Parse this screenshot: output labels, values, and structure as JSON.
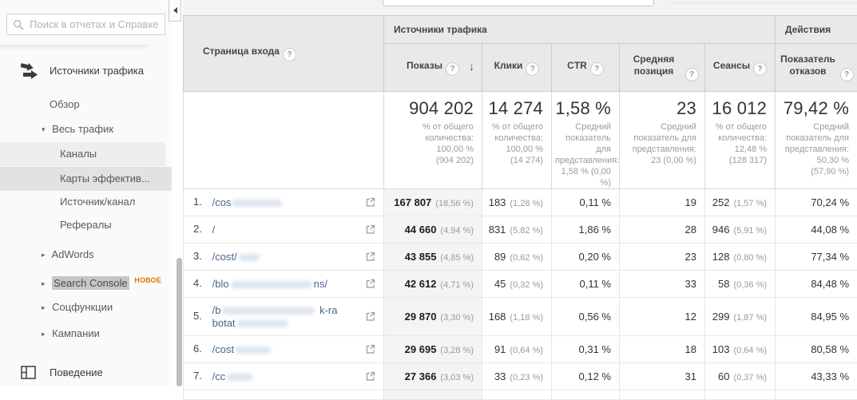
{
  "sidebar": {
    "search": {
      "placeholder": "Поиск в отчетах и Справке"
    },
    "items": [
      {
        "id": "acquisition",
        "label": "Источники трафика",
        "level": "section",
        "icon": "acquisition-icon"
      },
      {
        "id": "overview",
        "label": "Обзор",
        "level": "l1"
      },
      {
        "id": "all-traffic",
        "label": "Весь трафик",
        "level": "l1",
        "arrow": "down"
      },
      {
        "id": "channels",
        "label": "Каналы",
        "level": "l2",
        "highlight": "row-light"
      },
      {
        "id": "treemaps",
        "label": "Карты эффектив...",
        "level": "l2",
        "highlight": "row-dark"
      },
      {
        "id": "source-medium",
        "label": "Источник/канал",
        "level": "l2"
      },
      {
        "id": "referrals",
        "label": "Рефералы",
        "level": "l2"
      },
      {
        "id": "adwords",
        "label": "AdWords",
        "level": "l1",
        "arrow": "right"
      },
      {
        "id": "search-console",
        "label": "Search Console",
        "level": "l1",
        "arrow": "right",
        "badge": "НОВОЕ",
        "text_highlight": true
      },
      {
        "id": "social",
        "label": "Соцфункции",
        "level": "l1",
        "arrow": "right"
      },
      {
        "id": "campaigns",
        "label": "Кампании",
        "level": "l1",
        "arrow": "right"
      },
      {
        "id": "behavior",
        "label": "Поведение",
        "level": "section",
        "icon": "behavior-icon"
      }
    ]
  },
  "table": {
    "col_page": "Страница входа",
    "group_traffic": "Источники трафика",
    "group_actions": "Действия",
    "col_impressions": "Показы",
    "col_clicks": "Клики",
    "col_ctr": "CTR",
    "col_position": "Средняя позиция",
    "col_sessions": "Сеансы",
    "col_bounce": "Показатель отказов",
    "sort_arrow": "↓",
    "help_glyph": "?",
    "summary": {
      "impressions": {
        "value": "904 202",
        "note": "% от общего\nколичества:\n100,00 %\n(904 202)"
      },
      "clicks": {
        "value": "14 274",
        "note": "% от общего\nколичества:\n100,00 %\n(14 274)"
      },
      "ctr": {
        "value": "1,58 %",
        "note": "Средний\nпоказатель для\nпредставления:\n1,58 % (0,00 %)"
      },
      "position": {
        "value": "23",
        "note": "Средний\nпоказатель для\nпредставления:\n23 (0,00 %)"
      },
      "sessions": {
        "value": "16 012",
        "note": "% от общего\nколичества:\n12,48 %\n(128 317)"
      },
      "bounce": {
        "value": "79,42 %",
        "note": "Средний\nпоказатель для\nпредставления:\n50,30 %\n(57,90 %)"
      }
    },
    "rows": [
      {
        "rank": "1.",
        "page": {
          "pre": "/cos",
          "blur": 62,
          "post": ""
        },
        "impressions": "167 807",
        "impressions_pct": "(18,56 %)",
        "clicks": "183",
        "clicks_pct": "(1,28 %)",
        "ctr": "0,11 %",
        "position": "19",
        "sessions": "252",
        "sessions_pct": "(1,57 %)",
        "bounce": "70,24 %"
      },
      {
        "rank": "2.",
        "page": {
          "pre": "/",
          "blur": 0,
          "post": ""
        },
        "impressions": "44 660",
        "impressions_pct": "(4,94 %)",
        "clicks": "831",
        "clicks_pct": "(5,82 %)",
        "ctr": "1,86 %",
        "position": "28",
        "sessions": "946",
        "sessions_pct": "(5,91 %)",
        "bounce": "44,08 %"
      },
      {
        "rank": "3.",
        "page": {
          "pre": "/cost/",
          "blur": 26,
          "post": ""
        },
        "impressions": "43 855",
        "impressions_pct": "(4,85 %)",
        "clicks": "89",
        "clicks_pct": "(0,62 %)",
        "ctr": "0,20 %",
        "position": "23",
        "sessions": "128",
        "sessions_pct": "(0,80 %)",
        "bounce": "77,34 %"
      },
      {
        "rank": "4.",
        "page": {
          "pre": "/blo",
          "blur": 102,
          "post": "ns/"
        },
        "impressions": "42 612",
        "impressions_pct": "(4,71 %)",
        "clicks": "45",
        "clicks_pct": "(0,32 %)",
        "ctr": "0,11 %",
        "position": "33",
        "sessions": "58",
        "sessions_pct": "(0,36 %)",
        "bounce": "84,48 %"
      },
      {
        "rank": "5.",
        "page": {
          "pre": "/b",
          "blur": 116,
          "post": " k-ra",
          "line2": {
            "pre": "botat",
            "blur": 64,
            "post": ""
          }
        },
        "impressions": "29 870",
        "impressions_pct": "(3,30 %)",
        "clicks": "168",
        "clicks_pct": "(1,18 %)",
        "ctr": "0,56 %",
        "position": "12",
        "sessions": "299",
        "sessions_pct": "(1,87 %)",
        "bounce": "84,95 %"
      },
      {
        "rank": "6.",
        "page": {
          "pre": "/cost",
          "blur": 44,
          "post": ""
        },
        "impressions": "29 695",
        "impressions_pct": "(3,28 %)",
        "clicks": "91",
        "clicks_pct": "(0,64 %)",
        "ctr": "0,31 %",
        "position": "18",
        "sessions": "103",
        "sessions_pct": "(0,64 %)",
        "bounce": "80,58 %"
      },
      {
        "rank": "7.",
        "page": {
          "pre": "/cc",
          "blur": 32,
          "post": ""
        },
        "impressions": "27 366",
        "impressions_pct": "(3,03 %)",
        "clicks": "33",
        "clicks_pct": "(0,23 %)",
        "ctr": "0,12 %",
        "position": "31",
        "sessions": "60",
        "sessions_pct": "(0,37 %)",
        "bounce": "43,33 %"
      }
    ]
  }
}
